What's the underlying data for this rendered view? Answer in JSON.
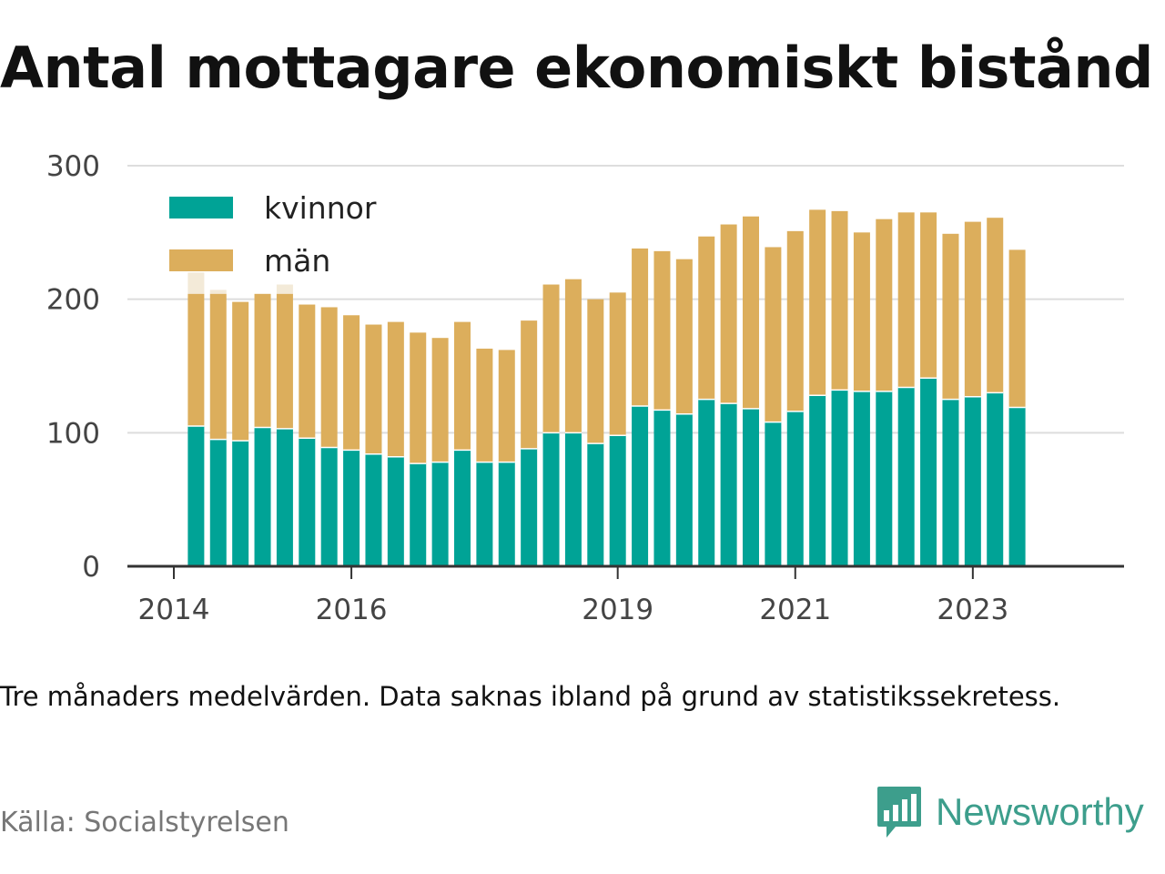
{
  "title": "Antal mottagare ekonomiskt bistånd",
  "note": "Tre månaders medelvärden. Data saknas ibland på grund av statistikssekretess.",
  "source": "Källa: Socialstyrelsen",
  "brand": {
    "name": "Newsworthy",
    "icon": "newsworthy-chart-bubble-icon"
  },
  "colors": {
    "kvinnor": "#00a396",
    "man": "#dcae5c",
    "faded": "#f3ead8",
    "grid": "#dddddd",
    "axis": "#333333"
  },
  "chart_data": {
    "type": "bar",
    "stacked": true,
    "ylim": [
      0,
      300
    ],
    "yticks": [
      0,
      100,
      200,
      300
    ],
    "xticks": [
      {
        "label": "2014",
        "x": 2014.0
      },
      {
        "label": "2016",
        "x": 2016.0
      },
      {
        "label": "2019",
        "x": 2019.0
      },
      {
        "label": "2021",
        "x": 2021.0
      },
      {
        "label": "2023",
        "x": 2023.0
      }
    ],
    "grid": true,
    "legend": "top-left",
    "series": [
      {
        "name": "kvinnor",
        "values": [
          105,
          95,
          94,
          104,
          103,
          96,
          89,
          87,
          84,
          82,
          77,
          78,
          87,
          78,
          78,
          88,
          100,
          100,
          92,
          98,
          120,
          117,
          114,
          125,
          122,
          118,
          108,
          116,
          128,
          132,
          131,
          131,
          134,
          141,
          125,
          127,
          130,
          119
        ]
      },
      {
        "name": "män",
        "values": [
          99,
          109,
          104,
          100,
          101,
          100,
          105,
          101,
          97,
          101,
          98,
          93,
          96,
          85,
          84,
          96,
          111,
          115,
          108,
          107,
          118,
          119,
          116,
          122,
          134,
          144,
          131,
          135,
          139,
          134,
          119,
          129,
          131,
          124,
          124,
          131,
          131,
          118
        ]
      }
    ],
    "incomplete_totals": [
      220,
      207,
      null,
      null,
      211,
      null,
      null,
      null,
      null,
      null,
      null,
      null,
      null,
      null,
      null,
      null,
      null,
      null,
      null,
      null,
      null,
      null,
      null,
      null,
      null,
      null,
      null,
      null,
      null,
      null,
      null,
      null,
      null,
      null,
      null,
      null,
      null,
      null
    ],
    "bar_x": [
      2014.25,
      2014.5,
      2014.75,
      2015.0,
      2015.25,
      2015.5,
      2015.75,
      2016.0,
      2016.25,
      2016.5,
      2016.75,
      2017.0,
      2017.25,
      2017.5,
      2017.75,
      2018.0,
      2018.25,
      2018.5,
      2018.75,
      2019.0,
      2019.25,
      2019.5,
      2019.75,
      2020.0,
      2020.25,
      2020.5,
      2020.75,
      2021.0,
      2021.25,
      2021.5,
      2021.75,
      2022.0,
      2022.25,
      2022.5,
      2022.75,
      2023.0,
      2023.25,
      2023.5
    ]
  }
}
